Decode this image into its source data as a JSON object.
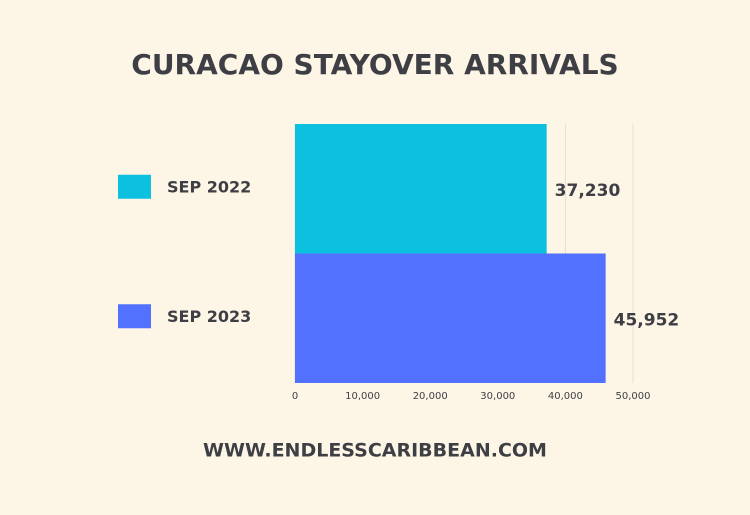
{
  "chart_data": {
    "type": "hbar",
    "title": "CURACAO STAYOVER ARRIVALS",
    "categories": [
      "SEP 2022",
      "SEP 2023"
    ],
    "values": [
      37230,
      45952
    ],
    "value_labels": [
      "37,230",
      "45,952"
    ],
    "colors": [
      "#0cc0df",
      "#5271ff"
    ],
    "xlim": [
      0,
      50000
    ],
    "xticks": [
      0,
      {
        "value": 10000,
        "label": "10,000"
      },
      {
        "value": 20000,
        "label": "20,000"
      },
      {
        "value": 30000,
        "label": "30,000"
      },
      {
        "value": 40000,
        "label": "40,000"
      },
      {
        "value": 50000,
        "label": "50,000"
      }
    ],
    "grid": true,
    "legend": "left",
    "source": "WWW.ENDLESSCARIBBEAN.COM"
  }
}
